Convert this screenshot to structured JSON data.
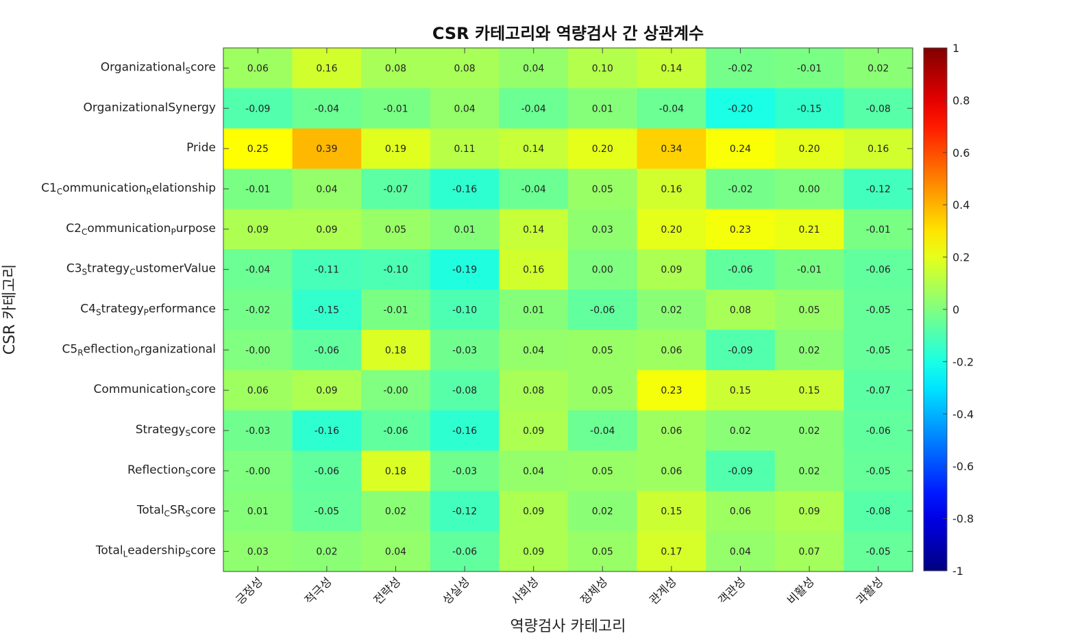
{
  "chart_data": {
    "type": "heatmap",
    "title": "CSR 카테고리와 역량검사 간 상관계수",
    "xlabel": "역량검사 카테고리",
    "ylabel": "CSR 카테고리",
    "x_categories": [
      "긍정성",
      "적극성",
      "전략성",
      "성실성",
      "사회성",
      "정체성",
      "관계성",
      "객관성",
      "비활성",
      "과활성"
    ],
    "y_categories": [
      {
        "main": "Organizational",
        "sub": "S",
        "rest": "core"
      },
      {
        "main": "OrganizationalSynergy",
        "sub": "",
        "rest": ""
      },
      {
        "main": "Pride",
        "sub": "",
        "rest": ""
      },
      {
        "main": "C1",
        "sub": "C",
        "rest": "ommunication",
        "sub2": "R",
        "rest2": "elationship"
      },
      {
        "main": "C2",
        "sub": "C",
        "rest": "ommunication",
        "sub2": "P",
        "rest2": "urpose"
      },
      {
        "main": "C3",
        "sub": "S",
        "rest": "trategy",
        "sub2": "C",
        "rest2": "ustomerValue"
      },
      {
        "main": "C4",
        "sub": "S",
        "rest": "trategy",
        "sub2": "P",
        "rest2": "erformance"
      },
      {
        "main": "C5",
        "sub": "R",
        "rest": "eflection",
        "sub2": "O",
        "rest2": "rganizational"
      },
      {
        "main": "Communication",
        "sub": "S",
        "rest": "core"
      },
      {
        "main": "Strategy",
        "sub": "S",
        "rest": "core"
      },
      {
        "main": "Reflection",
        "sub": "S",
        "rest": "core"
      },
      {
        "main": "Total",
        "sub": "C",
        "rest": "SR",
        "sub2": "S",
        "rest2": "core"
      },
      {
        "main": "Total",
        "sub": "L",
        "rest": "eadership",
        "sub2": "S",
        "rest2": "core"
      }
    ],
    "values": [
      [
        0.06,
        0.16,
        0.08,
        0.08,
        0.04,
        0.1,
        0.14,
        -0.02,
        -0.01,
        0.02
      ],
      [
        -0.09,
        -0.04,
        -0.01,
        0.04,
        -0.04,
        0.01,
        -0.04,
        -0.2,
        -0.15,
        -0.08
      ],
      [
        0.25,
        0.39,
        0.19,
        0.11,
        0.14,
        0.2,
        0.34,
        0.24,
        0.2,
        0.16
      ],
      [
        -0.01,
        0.04,
        -0.07,
        -0.16,
        -0.04,
        0.05,
        0.16,
        -0.02,
        0.0,
        -0.12
      ],
      [
        0.09,
        0.09,
        0.05,
        0.01,
        0.14,
        0.03,
        0.2,
        0.23,
        0.21,
        -0.01
      ],
      [
        -0.04,
        -0.11,
        -0.1,
        -0.19,
        0.16,
        0.0,
        0.09,
        -0.06,
        -0.01,
        -0.06
      ],
      [
        -0.02,
        -0.15,
        -0.01,
        -0.1,
        0.01,
        -0.06,
        0.02,
        0.08,
        0.05,
        -0.05
      ],
      [
        -0.0,
        -0.06,
        0.18,
        -0.03,
        0.04,
        0.05,
        0.06,
        -0.09,
        0.02,
        -0.05
      ],
      [
        0.06,
        0.09,
        -0.0,
        -0.08,
        0.08,
        0.05,
        0.23,
        0.15,
        0.15,
        -0.07
      ],
      [
        -0.03,
        -0.16,
        -0.06,
        -0.16,
        0.09,
        -0.04,
        0.06,
        0.02,
        0.02,
        -0.06
      ],
      [
        -0.0,
        -0.06,
        0.18,
        -0.03,
        0.04,
        0.05,
        0.06,
        -0.09,
        0.02,
        -0.05
      ],
      [
        0.01,
        -0.05,
        0.02,
        -0.12,
        0.09,
        0.02,
        0.15,
        0.06,
        0.09,
        -0.08
      ],
      [
        0.03,
        0.02,
        0.04,
        -0.06,
        0.09,
        0.05,
        0.17,
        0.04,
        0.07,
        -0.05
      ]
    ],
    "value_labels": [
      [
        "0.06",
        "0.16",
        "0.08",
        "0.08",
        "0.04",
        "0.10",
        "0.14",
        "-0.02",
        "-0.01",
        "0.02"
      ],
      [
        "-0.09",
        "-0.04",
        "-0.01",
        "0.04",
        "-0.04",
        "0.01",
        "-0.04",
        "-0.20",
        "-0.15",
        "-0.08"
      ],
      [
        "0.25",
        "0.39",
        "0.19",
        "0.11",
        "0.14",
        "0.20",
        "0.34",
        "0.24",
        "0.20",
        "0.16"
      ],
      [
        "-0.01",
        "0.04",
        "-0.07",
        "-0.16",
        "-0.04",
        "0.05",
        "0.16",
        "-0.02",
        "0.00",
        "-0.12"
      ],
      [
        "0.09",
        "0.09",
        "0.05",
        "0.01",
        "0.14",
        "0.03",
        "0.20",
        "0.23",
        "0.21",
        "-0.01"
      ],
      [
        "-0.04",
        "-0.11",
        "-0.10",
        "-0.19",
        "0.16",
        "0.00",
        "0.09",
        "-0.06",
        "-0.01",
        "-0.06"
      ],
      [
        "-0.02",
        "-0.15",
        "-0.01",
        "-0.10",
        "0.01",
        "-0.06",
        "0.02",
        "0.08",
        "0.05",
        "-0.05"
      ],
      [
        "-0.00",
        "-0.06",
        "0.18",
        "-0.03",
        "0.04",
        "0.05",
        "0.06",
        "-0.09",
        "0.02",
        "-0.05"
      ],
      [
        "0.06",
        "0.09",
        "-0.00",
        "-0.08",
        "0.08",
        "0.05",
        "0.23",
        "0.15",
        "0.15",
        "-0.07"
      ],
      [
        "-0.03",
        "-0.16",
        "-0.06",
        "-0.16",
        "0.09",
        "-0.04",
        "0.06",
        "0.02",
        "0.02",
        "-0.06"
      ],
      [
        "-0.00",
        "-0.06",
        "0.18",
        "-0.03",
        "0.04",
        "0.05",
        "0.06",
        "-0.09",
        "0.02",
        "-0.05"
      ],
      [
        "0.01",
        "-0.05",
        "0.02",
        "-0.12",
        "0.09",
        "0.02",
        "0.15",
        "0.06",
        "0.09",
        "-0.08"
      ],
      [
        "0.03",
        "0.02",
        "0.04",
        "-0.06",
        "0.09",
        "0.05",
        "0.17",
        "0.04",
        "0.07",
        "-0.05"
      ]
    ],
    "colormap": "jet",
    "clim": [
      -1,
      1
    ],
    "colorbar_ticks": [
      1,
      0.8,
      0.6,
      0.4,
      0.2,
      0,
      -0.2,
      -0.4,
      -0.6,
      -0.8,
      -1
    ],
    "colorbar_tick_labels": [
      "1",
      "0.8",
      "0.6",
      "0.4",
      "0.2",
      "0",
      "-0.2",
      "-0.4",
      "-0.6",
      "-0.8",
      "-1"
    ],
    "colorbar_placement": "right",
    "grid": false
  }
}
